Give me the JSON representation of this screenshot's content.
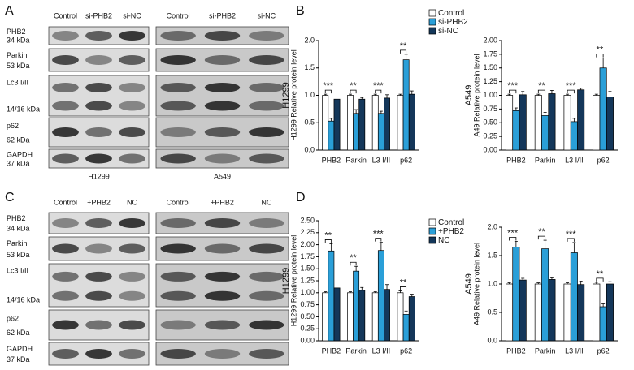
{
  "panel_labels": {
    "a": "A",
    "b": "B",
    "c": "C",
    "d": "D"
  },
  "blot_a": {
    "lanes": [
      "Control",
      "si-PHB2",
      "si-NC"
    ],
    "rows": [
      [
        "PHB2",
        "34 kDa"
      ],
      [
        "Parkin",
        "53 kDa"
      ],
      [
        "Lc3 I/II",
        "14/16 kDa"
      ],
      [
        "p62",
        "62 kDa"
      ],
      [
        "GAPDH",
        "37 kDa"
      ]
    ],
    "cell_lines": [
      "H1299",
      "A549"
    ]
  },
  "blot_c": {
    "lanes": [
      "Control",
      "+PHB2",
      "NC"
    ],
    "rows": [
      [
        "PHB2",
        "34 kDa"
      ],
      [
        "Parkin",
        "53 kDa"
      ],
      [
        "Lc3 I/II",
        "14/16 kDa"
      ],
      [
        "p62",
        "62 kDa"
      ],
      [
        "GAPDH",
        "37 kDa"
      ]
    ]
  },
  "chart_data": [
    {
      "type": "bar",
      "side_label": "H1299",
      "ylabel": "H1299 Relative protein level",
      "categories": [
        "PHB2",
        "Parkin",
        "L3 I/II",
        "p62"
      ],
      "series": [
        {
          "name": "Control",
          "color": "#ffffff",
          "values": [
            1,
            1,
            1,
            1
          ],
          "errors": [
            0.02,
            0.02,
            0.02,
            0.02
          ]
        },
        {
          "name": "si-PHB2",
          "color": "#2a9fd8",
          "values": [
            0.53,
            0.67,
            0.67,
            1.65
          ],
          "errors": [
            0.05,
            0.07,
            0.04,
            0.1
          ]
        },
        {
          "name": "si-NC",
          "color": "#14375a",
          "values": [
            0.93,
            0.93,
            0.95,
            1.02
          ],
          "errors": [
            0.04,
            0.03,
            0.06,
            0.06
          ]
        }
      ],
      "annotations": [
        "***",
        "**",
        "***",
        "**"
      ],
      "ylim": [
        0,
        2
      ],
      "yticks": [
        {
          "value": 0,
          "label": "0.0"
        },
        0.5,
        {
          "value": 1,
          "label": "1.0"
        },
        1.5,
        {
          "value": 2,
          "label": "2.0"
        }
      ],
      "legend": "right"
    },
    {
      "type": "bar",
      "side_label": "A549",
      "ylabel": "A49 Relative protein level",
      "categories": [
        "PHB2",
        "Parkin",
        "L3 I/II",
        "p62"
      ],
      "series": [
        {
          "color": "#ffffff",
          "values": [
            1,
            1,
            1,
            1
          ],
          "errors": [
            0.02,
            0.02,
            0.02,
            0.02
          ]
        },
        {
          "color": "#2a9fd8",
          "values": [
            0.72,
            0.63,
            0.52,
            1.5
          ],
          "errors": [
            0.05,
            0.06,
            0.06,
            0.18
          ]
        },
        {
          "color": "#14375a",
          "values": [
            1.01,
            1.03,
            1.1,
            0.97
          ],
          "errors": [
            0.06,
            0.06,
            0.03,
            0.1
          ]
        }
      ],
      "annotations": [
        "***",
        "**",
        "***",
        "**"
      ],
      "ylim": [
        0,
        2
      ],
      "yticks": [
        {
          "value": 0,
          "label": "0.00"
        },
        0.25,
        {
          "value": 0.5,
          "label": "0.50"
        },
        0.75,
        {
          "value": 1,
          "label": "1.00"
        },
        1.25,
        {
          "value": 1.5,
          "label": "1.50"
        },
        1.75,
        {
          "value": 2,
          "label": "2.00"
        }
      ]
    },
    {
      "type": "bar",
      "side_label": "H1299",
      "ylabel": "H1299 Relative protein level",
      "categories": [
        "PHB2",
        "Parkin",
        "L3 I/II",
        "p62"
      ],
      "series": [
        {
          "name": "Control",
          "color": "#ffffff",
          "values": [
            1,
            1,
            1,
            1
          ],
          "errors": [
            0.02,
            0.02,
            0.02,
            0.04
          ]
        },
        {
          "name": "+PHB2",
          "color": "#2a9fd8",
          "values": [
            1.87,
            1.45,
            1.88,
            0.55
          ],
          "errors": [
            0.15,
            0.1,
            0.17,
            0.07
          ]
        },
        {
          "name": "NC",
          "color": "#14375a",
          "values": [
            1.1,
            1.05,
            1.07,
            0.92
          ],
          "errors": [
            0.04,
            0.06,
            0.1,
            0.05
          ]
        }
      ],
      "annotations": [
        "**",
        "**",
        "***",
        "**"
      ],
      "ylim": [
        0,
        2.5
      ],
      "yticks": [
        {
          "value": 0,
          "label": "0.00"
        },
        0.25,
        {
          "value": 0.5,
          "label": "0.50"
        },
        0.75,
        {
          "value": 1,
          "label": "1.00"
        },
        1.25,
        {
          "value": 1.5,
          "label": "1.50"
        },
        1.75,
        {
          "value": 2,
          "label": "2.00"
        },
        2.25,
        {
          "value": 2.5,
          "label": "2.50"
        }
      ],
      "legend": "right"
    },
    {
      "type": "bar",
      "side_label": "A549",
      "ylabel": "A49 Relative protein level",
      "categories": [
        "PHB2",
        "Parkin",
        "L3 I/II",
        "p62"
      ],
      "series": [
        {
          "color": "#ffffff",
          "values": [
            1,
            1,
            1,
            1
          ],
          "errors": [
            0.02,
            0.02,
            0.02,
            0.03
          ]
        },
        {
          "color": "#2a9fd8",
          "values": [
            1.65,
            1.62,
            1.55,
            0.6
          ],
          "errors": [
            0.1,
            0.15,
            0.18,
            0.05
          ]
        },
        {
          "color": "#14375a",
          "values": [
            1.07,
            1.08,
            0.99,
            1.0
          ],
          "errors": [
            0.03,
            0.03,
            0.06,
            0.04
          ]
        }
      ],
      "annotations": [
        "***",
        "**",
        "***",
        "**"
      ],
      "ylim": [
        0,
        2
      ],
      "yticks": [
        {
          "value": 0,
          "label": "0.0"
        },
        0.5,
        {
          "value": 1,
          "label": "1.0"
        },
        1.5,
        {
          "value": 2,
          "label": "2.0"
        }
      ]
    }
  ]
}
